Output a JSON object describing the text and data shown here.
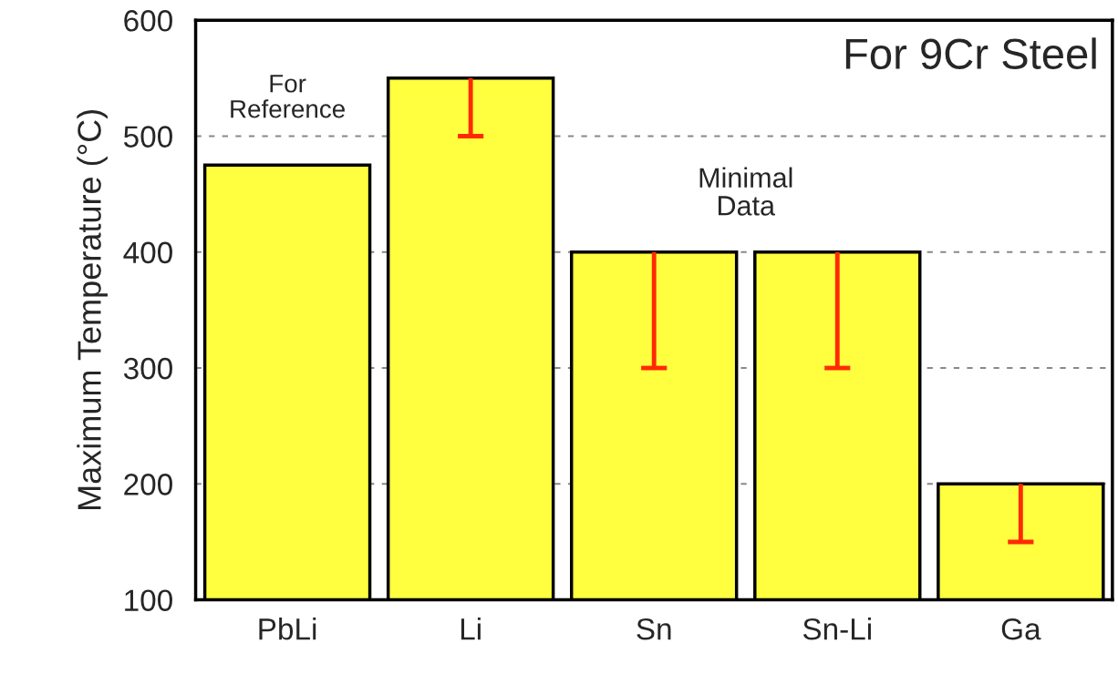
{
  "chart_data": {
    "type": "bar",
    "ylabel": "Maximum Temperature (°C)",
    "categories": [
      "PbLi",
      "Li",
      "Sn",
      "Sn-Li",
      "Ga"
    ],
    "values": [
      475,
      550,
      400,
      400,
      200
    ],
    "color": "#ffff40",
    "errors": [
      null,
      [
        500,
        550
      ],
      [
        300,
        400
      ],
      [
        300,
        400
      ],
      [
        150,
        200
      ]
    ],
    "ylim": [
      100,
      600
    ],
    "yticks": [
      100,
      200,
      300,
      400,
      500,
      600
    ],
    "grid": "y",
    "annotations": [
      "For 9Cr Steel",
      "For\nReference",
      "Minimal\nData"
    ]
  }
}
